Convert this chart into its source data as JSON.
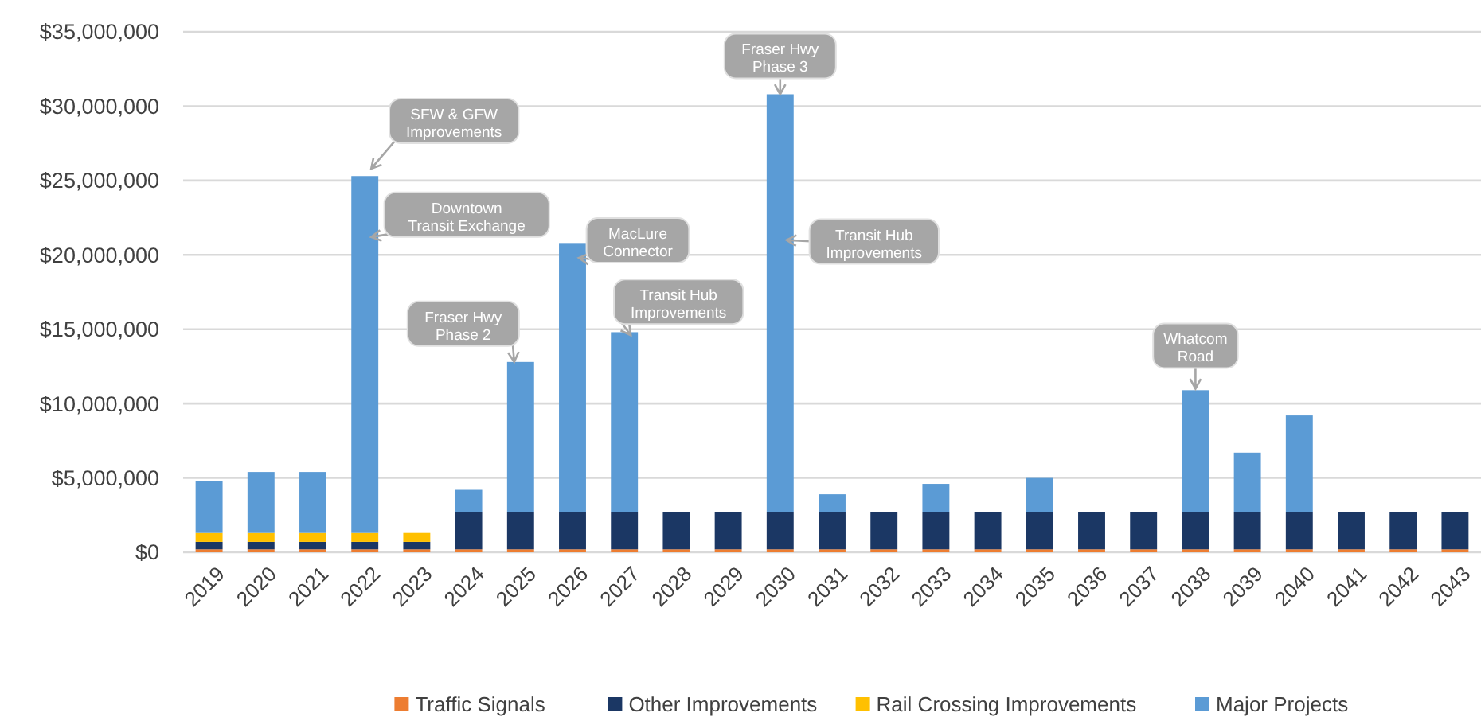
{
  "chart_data": {
    "type": "bar",
    "stacked": true,
    "categories": [
      "2019",
      "2020",
      "2021",
      "2022",
      "2023",
      "2024",
      "2025",
      "2026",
      "2027",
      "2028",
      "2029",
      "2030",
      "2031",
      "2032",
      "2033",
      "2034",
      "2035",
      "2036",
      "2037",
      "2038",
      "2039",
      "2040",
      "2041",
      "2042",
      "2043"
    ],
    "series": [
      {
        "name": "Traffic Signals",
        "color": "#ed7d31",
        "values": [
          200000,
          200000,
          200000,
          200000,
          200000,
          200000,
          200000,
          200000,
          200000,
          200000,
          200000,
          200000,
          200000,
          200000,
          200000,
          200000,
          200000,
          200000,
          200000,
          200000,
          200000,
          200000,
          200000,
          200000,
          200000
        ]
      },
      {
        "name": "Other Improvements",
        "color": "#1b3764",
        "values": [
          500000,
          500000,
          500000,
          500000,
          500000,
          2500000,
          2500000,
          2500000,
          2500000,
          2500000,
          2500000,
          2500000,
          2500000,
          2500000,
          2500000,
          2500000,
          2500000,
          2500000,
          2500000,
          2500000,
          2500000,
          2500000,
          2500000,
          2500000,
          2500000
        ]
      },
      {
        "name": "Rail Crossing Improvements",
        "color": "#ffc000",
        "values": [
          600000,
          600000,
          600000,
          600000,
          600000,
          0,
          0,
          0,
          0,
          0,
          0,
          0,
          0,
          0,
          0,
          0,
          0,
          0,
          0,
          0,
          0,
          0,
          0,
          0,
          0
        ]
      },
      {
        "name": "Major Projects",
        "color": "#5b9bd5",
        "values": [
          3500000,
          4100000,
          4100000,
          24000000,
          0,
          1500000,
          10100000,
          18100000,
          12100000,
          0,
          0,
          28100000,
          1200000,
          0,
          1900000,
          0,
          2300000,
          0,
          0,
          8200000,
          4000000,
          6500000,
          0,
          0,
          0
        ]
      }
    ],
    "ylim": [
      0,
      35000000
    ],
    "yticks": [
      {
        "value": 0,
        "label": "$0"
      },
      {
        "value": 5000000,
        "label": "$5,000,000"
      },
      {
        "value": 10000000,
        "label": "$10,000,000"
      },
      {
        "value": 15000000,
        "label": "$15,000,000"
      },
      {
        "value": 20000000,
        "label": "$20,000,000"
      },
      {
        "value": 25000000,
        "label": "$25,000,000"
      },
      {
        "value": 30000000,
        "label": "$30,000,000"
      },
      {
        "value": 35000000,
        "label": "$35,000,000"
      }
    ],
    "grid": "y",
    "legend": "bottom",
    "annotations": [
      {
        "text": "SFW & GFW\nImprovements",
        "x": "2022",
        "y": 25800000
      },
      {
        "text": "Downtown\nTransit Exchange",
        "x": "2022",
        "y": 21200000
      },
      {
        "text": "Fraser Hwy\nPhase 2",
        "x": "2025",
        "y": 12800000
      },
      {
        "text": "MacLure\nConnector",
        "x": "2026",
        "y": 19800000
      },
      {
        "text": "Transit Hub\nImprovements",
        "x": "2027",
        "y": 14600000
      },
      {
        "text": "Fraser Hwy\nPhase 3",
        "x": "2030",
        "y": 30800000
      },
      {
        "text": "Transit Hub\nImprovements",
        "x": "2030",
        "y": 21000000
      },
      {
        "text": "Whatcom\nRoad",
        "x": "2038",
        "y": 11000000
      }
    ]
  }
}
